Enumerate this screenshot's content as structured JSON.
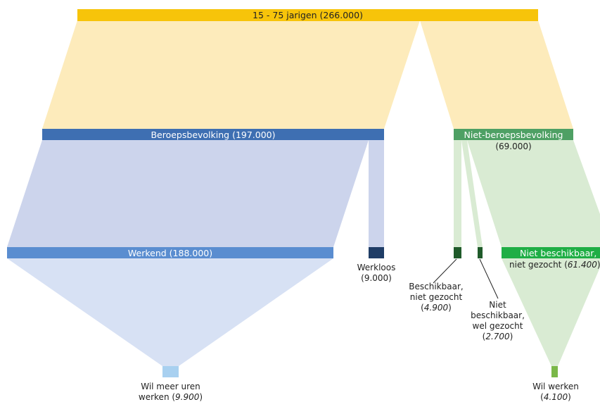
{
  "colors": {
    "total": "#f7c40a",
    "total_flow": "#fdebbb",
    "labour": "#3e6fb2",
    "labour_flow": "#ccd4ec",
    "employed": "#5a8dd0",
    "employed_flow": "#d7e1f4",
    "unemployed": "#1f3d66",
    "non_labour": "#4ea064",
    "non_labour_flow": "#d9ebd3",
    "dark_green": "#1f5a2a",
    "bright_green": "#1fae45",
    "want_more": "#a8d0f0",
    "want_work": "#7ab848"
  },
  "nodes": {
    "total": {
      "label": "15 - 75 jarigen (266.000)"
    },
    "labour": {
      "label": "Beroepsbevolking (197.000)"
    },
    "non_labour": {
      "label": "Niet-beroepsbevolking",
      "value": "(69.000)"
    },
    "employed": {
      "label": "Werkend (188.000)"
    },
    "unemployed": {
      "label": "Werkloos",
      "value": "(9.000)"
    },
    "avail_not_searched": {
      "line1": "Beschikbaar,",
      "line2": "niet gezocht",
      "value": "4.900"
    },
    "not_avail_searched": {
      "line1": "Niet",
      "line2": "beschikbaar,",
      "line3": "wel gezocht",
      "value": "2.700"
    },
    "not_avail_not_searched": {
      "line1": "Niet beschikbaar,",
      "line2": "niet gezocht",
      "value": "61.400"
    },
    "want_more_hours": {
      "line1": "Wil meer uren",
      "line2": "werken",
      "value": "9.900"
    },
    "want_work": {
      "line1": "Wil werken",
      "value": "4.100"
    }
  }
}
